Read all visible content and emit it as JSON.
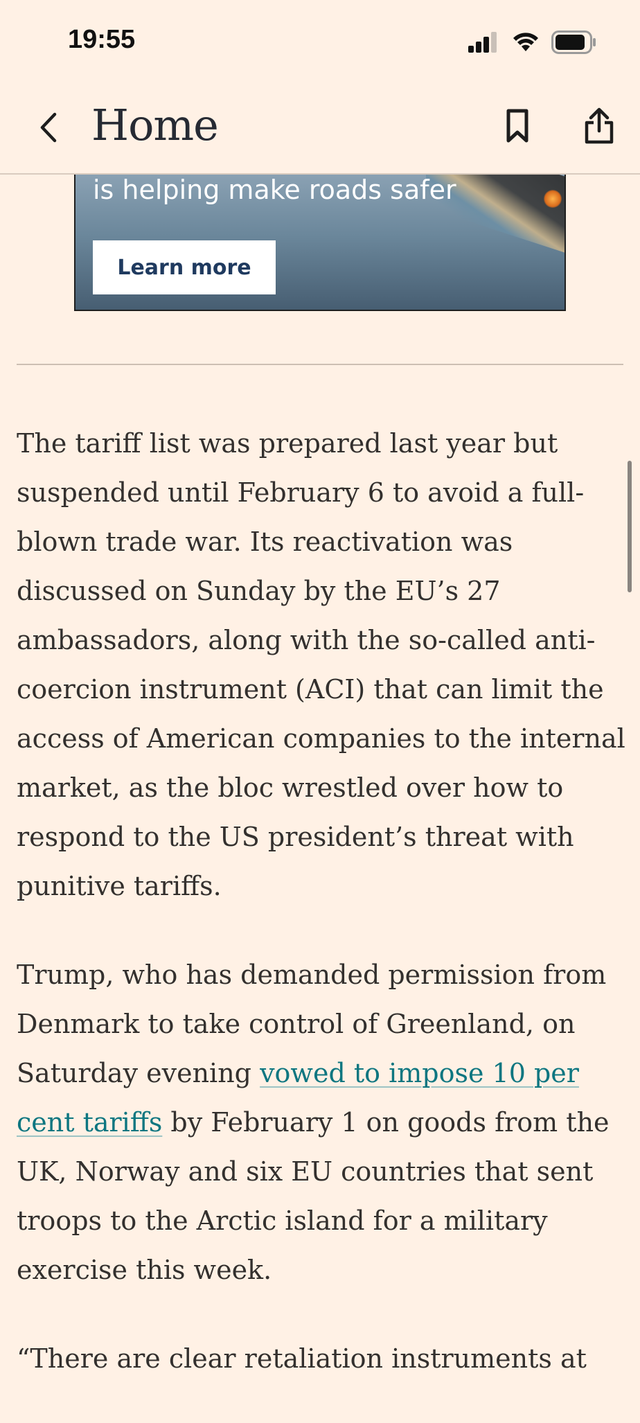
{
  "status_bar": {
    "time": "19:55"
  },
  "nav": {
    "title": "Home",
    "back_icon": "chevron-left-icon",
    "bookmark_icon": "bookmark-icon",
    "share_icon": "share-icon"
  },
  "ad": {
    "tagline": "is helping make roads safer",
    "cta_label": "Learn more"
  },
  "article": {
    "p1": "The tariff list was prepared last year but suspended until February 6 to avoid a full-blown trade war. Its reactivation was discussed on Sunday by the EU’s 27 ambassadors, along with the so-called anti-coercion instrument (ACI) that can limit the access of American companies to the internal market, as the bloc wrestled over how to respond to the US president’s threat with punitive tariffs.",
    "p2_before": "Trump, who has demanded permission from Denmark to take control of Greenland, on Saturday evening ",
    "p2_link": "vowed to impose 10 per cent tariffs",
    "p2_after": " by February 1 on goods from the UK, Norway and six EU countries that sent troops to the Arctic island for a military exercise this week.",
    "p3": "“There are clear retaliation instruments at"
  },
  "colors": {
    "background": "#fff1e5",
    "link": "#0d7680",
    "text": "#33302e"
  }
}
